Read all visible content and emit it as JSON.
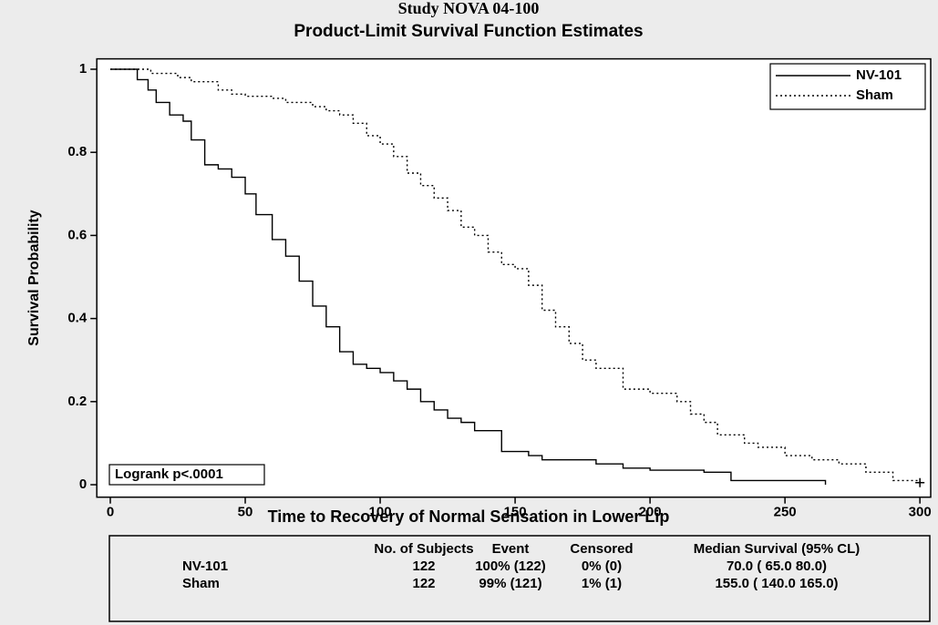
{
  "chart_data": {
    "type": "step",
    "suptitle": "Study NOVA 04-100",
    "title": "Product-Limit Survival Function Estimates",
    "xlabel": "Time to Recovery of Normal Sensation in Lower Lip",
    "ylabel": "Survival Probability",
    "annotation": "Logrank p<.0001",
    "xlim": [
      -5,
      304
    ],
    "ylim": [
      -0.03,
      1.025
    ],
    "xticks": [
      0,
      50,
      100,
      150,
      200,
      250,
      300
    ],
    "yticks": [
      0,
      0.2,
      0.4,
      0.6,
      0.8,
      1
    ],
    "legend": "upper right",
    "series": [
      {
        "name": "NV-101",
        "color": "#000000",
        "dash": "solid",
        "x": [
          0,
          10,
          14,
          17,
          22,
          27,
          30,
          35,
          40,
          45,
          50,
          54,
          60,
          65,
          70,
          75,
          80,
          85,
          90,
          95,
          100,
          105,
          110,
          115,
          120,
          125,
          130,
          135,
          145,
          155,
          160,
          180,
          190,
          200,
          220,
          230,
          265
        ],
        "values": [
          1,
          0.975,
          0.95,
          0.92,
          0.89,
          0.875,
          0.83,
          0.77,
          0.76,
          0.74,
          0.7,
          0.65,
          0.59,
          0.55,
          0.49,
          0.43,
          0.38,
          0.32,
          0.29,
          0.28,
          0.27,
          0.25,
          0.23,
          0.2,
          0.18,
          0.16,
          0.15,
          0.13,
          0.08,
          0.07,
          0.06,
          0.05,
          0.04,
          0.035,
          0.03,
          0.01,
          0
        ]
      },
      {
        "name": "Sham",
        "color": "#000000",
        "dash": "dotted",
        "x": [
          0,
          15,
          25,
          30,
          40,
          45,
          50,
          60,
          65,
          75,
          80,
          85,
          90,
          95,
          100,
          105,
          110,
          115,
          120,
          125,
          130,
          135,
          140,
          145,
          150,
          155,
          160,
          165,
          170,
          175,
          180,
          190,
          200,
          210,
          215,
          220,
          225,
          235,
          240,
          250,
          260,
          270,
          280,
          290,
          300
        ],
        "values": [
          1,
          0.99,
          0.98,
          0.97,
          0.95,
          0.94,
          0.935,
          0.93,
          0.92,
          0.91,
          0.9,
          0.89,
          0.87,
          0.84,
          0.82,
          0.79,
          0.75,
          0.72,
          0.69,
          0.66,
          0.62,
          0.6,
          0.56,
          0.53,
          0.52,
          0.48,
          0.42,
          0.38,
          0.34,
          0.3,
          0.28,
          0.23,
          0.22,
          0.2,
          0.17,
          0.15,
          0.12,
          0.1,
          0.09,
          0.07,
          0.06,
          0.05,
          0.03,
          0.01,
          0.005
        ],
        "censored": {
          "x": [
            300
          ],
          "values": [
            0.005
          ]
        }
      }
    ]
  },
  "summary_table": {
    "header": [
      "No. of Subjects",
      "Event",
      "Censored",
      "Median Survival (95% CL)"
    ],
    "rows": [
      [
        "NV-101",
        "122",
        "100% (122)",
        "0% (0)",
        "70.0 ( 65.0  80.0)"
      ],
      [
        "Sham",
        "122",
        "99% (121)",
        "1% (1)",
        "155.0 ( 140.0  165.0)"
      ]
    ]
  }
}
